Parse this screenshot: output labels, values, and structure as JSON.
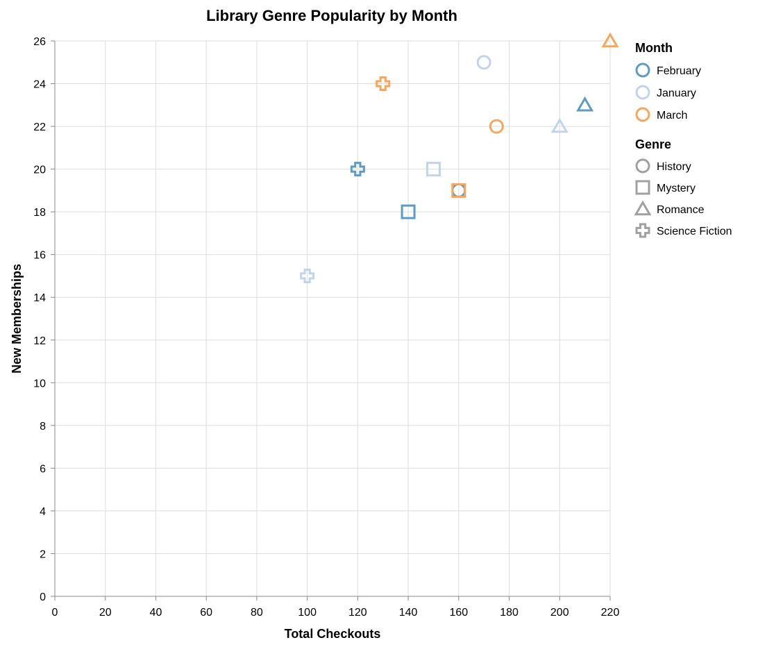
{
  "chart_data": {
    "type": "scatter",
    "title": "Library Genre Popularity by Month",
    "xlabel": "Total Checkouts",
    "ylabel": "New Memberships",
    "xlim": [
      0,
      220
    ],
    "ylim": [
      0,
      26
    ],
    "x_ticks": [
      0,
      20,
      40,
      60,
      80,
      100,
      120,
      140,
      160,
      180,
      200,
      220
    ],
    "y_ticks": [
      0,
      2,
      4,
      6,
      8,
      10,
      12,
      14,
      16,
      18,
      20,
      22,
      24,
      26
    ],
    "grid": true,
    "legend_position": "right",
    "color_legend": {
      "title": "Month",
      "entries": [
        {
          "label": "February",
          "color": "#5b9ac9"
        },
        {
          "label": "January",
          "color": "#c0d4ee"
        },
        {
          "label": "March",
          "color": "#f9a55a"
        }
      ]
    },
    "shape_legend": {
      "title": "Genre",
      "legend_color": "#a0a0a0",
      "entries": [
        {
          "label": "History",
          "shape": "circle"
        },
        {
          "label": "Mystery",
          "shape": "square"
        },
        {
          "label": "Romance",
          "shape": "triangle"
        },
        {
          "label": "Science Fiction",
          "shape": "cross"
        }
      ]
    },
    "points": [
      {
        "month": "January",
        "genre": "History",
        "x": 170,
        "y": 25
      },
      {
        "month": "January",
        "genre": "Mystery",
        "x": 150,
        "y": 20
      },
      {
        "month": "January",
        "genre": "Romance",
        "x": 200,
        "y": 22
      },
      {
        "month": "January",
        "genre": "Science Fiction",
        "x": 100,
        "y": 15
      },
      {
        "month": "February",
        "genre": "History",
        "x": 160,
        "y": 19
      },
      {
        "month": "February",
        "genre": "Mystery",
        "x": 140,
        "y": 18
      },
      {
        "month": "February",
        "genre": "Romance",
        "x": 210,
        "y": 23
      },
      {
        "month": "February",
        "genre": "Science Fiction",
        "x": 120,
        "y": 20
      },
      {
        "month": "March",
        "genre": "History",
        "x": 175,
        "y": 22
      },
      {
        "month": "March",
        "genre": "Mystery",
        "x": 160,
        "y": 19
      },
      {
        "month": "March",
        "genre": "Romance",
        "x": 220,
        "y": 26
      },
      {
        "month": "March",
        "genre": "Science Fiction",
        "x": 130,
        "y": 24
      }
    ]
  }
}
